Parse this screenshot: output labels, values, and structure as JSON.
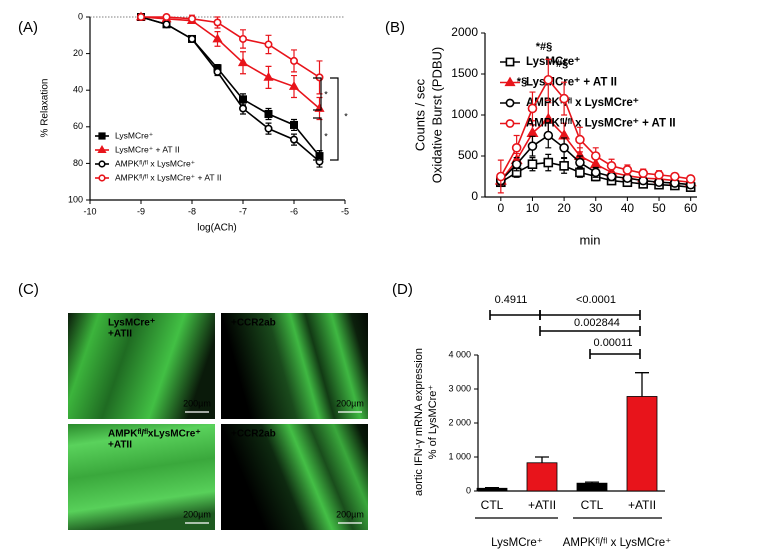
{
  "chart_data": [
    {
      "type": "line",
      "label": "(A)",
      "xlabel": "log(ACh)",
      "ylabel": [
        "% Relaxation"
      ],
      "x": [
        -9,
        -8.5,
        -8,
        -7.5,
        -7,
        -6.5,
        -6,
        -5.5
      ],
      "xlim": [
        -10,
        -5
      ],
      "xticks": [
        -10,
        -9,
        -8,
        -7,
        -6,
        -5
      ],
      "ylim": [
        0,
        100
      ],
      "yticks": [
        0,
        20,
        40,
        60,
        80,
        100
      ],
      "invert_y": true,
      "hline": 0,
      "series": [
        {
          "name": "LysMCre⁺",
          "color": "#000000",
          "marker": "square",
          "filled": true,
          "values": [
            0,
            4,
            12,
            28,
            45,
            53,
            59,
            76
          ],
          "errors": [
            0,
            1,
            1,
            2,
            3,
            3,
            3,
            3
          ]
        },
        {
          "name": "LysMCre⁺ + AT II",
          "color": "#e8141b",
          "marker": "triangle",
          "filled": true,
          "values": [
            0,
            1,
            2,
            12,
            25,
            33,
            38,
            50
          ],
          "errors": [
            0,
            1,
            1,
            4,
            6,
            6,
            6,
            6
          ]
        },
        {
          "name": "AMPKᶠˡ/ᶠˡ x LysMCre⁺",
          "color": "#000000",
          "marker": "circle",
          "filled": false,
          "values": [
            0,
            4,
            12,
            30,
            50,
            61,
            67,
            79
          ],
          "errors": [
            0,
            1,
            1,
            2,
            3,
            3,
            3,
            3
          ]
        },
        {
          "name": "AMPKᶠˡ/ᶠˡ x LysMCre⁺ + AT II",
          "color": "#e8141b",
          "marker": "circle",
          "filled": false,
          "values": [
            0,
            0,
            1,
            3,
            12,
            15,
            24,
            33
          ],
          "errors": [
            0,
            1,
            2,
            3,
            5,
            5,
            6,
            9
          ]
        }
      ],
      "annotations": [
        "*",
        "*",
        "*"
      ]
    },
    {
      "type": "line",
      "label": "(B)",
      "xlabel": "min",
      "ylabel": [
        "Counts / sec",
        "Oxidative Burst (PDBU)"
      ],
      "x": [
        0,
        5,
        10,
        15,
        20,
        25,
        30,
        35,
        40,
        45,
        50,
        55,
        60
      ],
      "xlim": [
        -5,
        62
      ],
      "xticks": [
        0,
        10,
        20,
        30,
        40,
        50,
        60
      ],
      "ylim": [
        0,
        2000
      ],
      "yticks": [
        0,
        500,
        1000,
        1500,
        2000
      ],
      "series": [
        {
          "name": "LysMCre⁺",
          "color": "#000000",
          "marker": "square",
          "filled": false,
          "values": [
            180,
            300,
            400,
            420,
            380,
            300,
            250,
            200,
            180,
            160,
            150,
            140,
            120
          ],
          "errors": [
            50,
            60,
            80,
            100,
            90,
            60,
            50,
            40,
            40,
            30,
            30,
            30,
            30
          ]
        },
        {
          "name": "LysMCre⁺ + AT II",
          "color": "#e8141b",
          "marker": "triangle",
          "filled": true,
          "values": [
            200,
            450,
            780,
            950,
            750,
            500,
            400,
            300,
            260,
            230,
            220,
            200,
            180
          ],
          "errors": [
            50,
            80,
            150,
            200,
            150,
            100,
            80,
            60,
            50,
            40,
            40,
            40,
            30
          ]
        },
        {
          "name": "AMPKᶠˡ/ᶠˡ x LysMCre⁺",
          "color": "#000000",
          "marker": "circle",
          "filled": false,
          "values": [
            200,
            400,
            620,
            750,
            600,
            420,
            300,
            250,
            230,
            200,
            180,
            170,
            150
          ],
          "errors": [
            50,
            80,
            120,
            150,
            120,
            80,
            60,
            50,
            40,
            40,
            30,
            30,
            30
          ]
        },
        {
          "name": "AMPKᶠˡ/ᶠˡ x LysMCre⁺ + AT II",
          "color": "#e8141b",
          "marker": "circle",
          "filled": false,
          "values": [
            250,
            600,
            1080,
            1430,
            1200,
            700,
            500,
            380,
            330,
            290,
            270,
            250,
            220
          ],
          "errors": [
            200,
            150,
            200,
            250,
            200,
            150,
            100,
            80,
            60,
            50,
            50,
            40,
            40
          ]
        }
      ],
      "annotations": [
        "*§",
        "*#§",
        "*#§"
      ]
    },
    {
      "type": "bar",
      "label": "(D)",
      "ylabel": [
        "aortic IFN-γ mRNA expression",
        "% of LysMCre⁺"
      ],
      "categories": [
        "CTL",
        "+ATII",
        "CTL",
        "+ATII"
      ],
      "groups": [
        "LysMCre⁺",
        "AMPKᶠˡ/ᶠˡ x LysMCre⁺"
      ],
      "values": [
        80,
        830,
        230,
        2780
      ],
      "errors": [
        20,
        170,
        30,
        700
      ],
      "colors": [
        "#000000",
        "#e8141b",
        "#000000",
        "#e8141b"
      ],
      "ylim": [
        0,
        4000
      ],
      "yticks": [
        0,
        {
          "value": 1000,
          "label": "1 000"
        },
        {
          "value": 2000,
          "label": "2 000"
        },
        {
          "value": 3000,
          "label": "3 000"
        },
        {
          "value": 4000,
          "label": "4 000"
        }
      ],
      "annotations": [
        "0.4911",
        "<0.0001",
        "0.002844",
        "0.00011"
      ]
    }
  ],
  "micrographs": {
    "label": "(C)",
    "images": [
      {
        "text": [
          "LysMCre⁺",
          "+ATII"
        ],
        "scale": "200µm"
      },
      {
        "text": [
          "+CCR2ab"
        ],
        "scale": "200µm"
      },
      {
        "text": [
          "AMPKᶠˡ/ᶠˡxLysMCre⁺",
          "+ATII"
        ],
        "scale": "200µm"
      },
      {
        "text": [
          "+CCR2ab"
        ],
        "scale": "200µm"
      }
    ]
  }
}
